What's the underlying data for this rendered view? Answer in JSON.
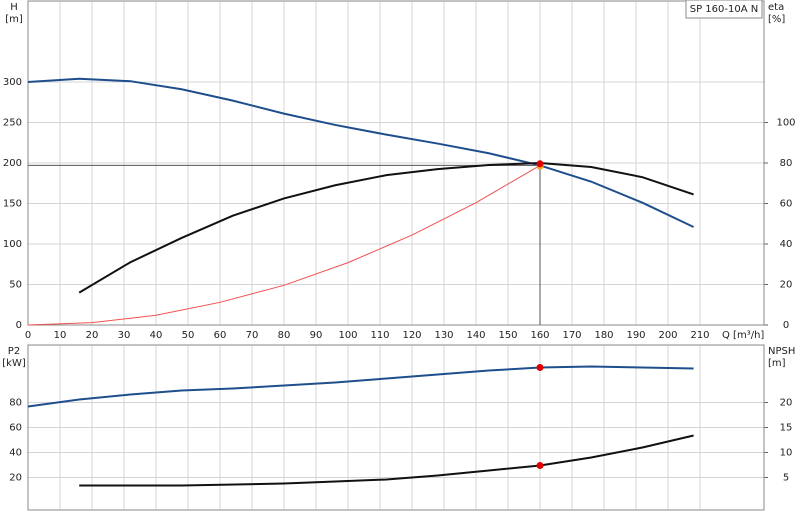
{
  "chart_data": [
    {
      "type": "line",
      "title": "SP 160-10A N",
      "x_label": "Q [m³/h]",
      "y_label": "H",
      "y_unit": "[m]",
      "y2_label": "eta",
      "y2_unit": "[%]",
      "xlim": [
        0,
        230
      ],
      "xticks": [
        0,
        10,
        20,
        30,
        40,
        50,
        60,
        70,
        80,
        90,
        100,
        110,
        120,
        130,
        140,
        150,
        160,
        170,
        180,
        190,
        200,
        210
      ],
      "ylim": [
        0,
        400
      ],
      "yticks": [
        0,
        50,
        100,
        150,
        200,
        250,
        300
      ],
      "y2lim": [
        0,
        160
      ],
      "y2ticks": [
        0,
        20,
        40,
        60,
        80,
        100
      ],
      "grid": true,
      "series": [
        {
          "color": "#1f4e8c",
          "x": [
            0,
            16,
            32,
            48,
            64,
            80,
            96,
            112,
            128,
            144,
            160,
            176,
            192,
            208
          ],
          "values": [
            300,
            304,
            301,
            291,
            277,
            261,
            247,
            235,
            224,
            212,
            197,
            177,
            151,
            121
          ]
        },
        {
          "color": "#111111",
          "axis": "y2",
          "x": [
            16,
            32,
            48,
            64,
            80,
            96,
            112,
            128,
            144,
            160,
            176,
            192,
            208
          ],
          "values": [
            16,
            31,
            43,
            54,
            62.5,
            69,
            74,
            77,
            79,
            80,
            78,
            73,
            64.5
          ]
        },
        {
          "color": "#f05050",
          "x": [
            0,
            20,
            40,
            60,
            80,
            100,
            120,
            140,
            160
          ],
          "values": [
            0,
            3,
            12,
            28,
            49,
            77,
            111,
            151,
            197
          ]
        }
      ],
      "reference": {
        "x": 160,
        "y": 197
      },
      "points": [
        {
          "x": 160,
          "y": 196,
          "color": "#f5a623"
        },
        {
          "x": 160,
          "y": 199,
          "color": "#e00000"
        }
      ]
    },
    {
      "type": "line",
      "y_label": "P2",
      "y_unit": "[kW]",
      "y2_label": "NPSH",
      "y2_unit": "[m]",
      "xlim": [
        0,
        230
      ],
      "xticks": [
        0,
        10,
        20,
        30,
        40,
        50,
        60,
        70,
        80,
        90,
        100,
        110,
        120,
        130,
        140,
        150,
        160,
        170,
        180,
        190,
        200,
        210
      ],
      "ylim": [
        -6,
        126
      ],
      "yticks": [
        20,
        40,
        60,
        80
      ],
      "y2lim": [
        -1.5,
        31.5
      ],
      "y2ticks": [
        5,
        10,
        15,
        20
      ],
      "grid": true,
      "series": [
        {
          "color": "#1f4e8c",
          "x": [
            0,
            16,
            32,
            48,
            64,
            80,
            96,
            112,
            128,
            144,
            160,
            176,
            192,
            208
          ],
          "values": [
            76.8,
            82.4,
            86.4,
            89.6,
            91.2,
            93.6,
            96,
            99.2,
            102.4,
            105.6,
            108,
            108.8,
            108,
            107.2
          ]
        },
        {
          "color": "#111111",
          "axis": "y2",
          "x": [
            16,
            48,
            80,
            96,
            112,
            128,
            144,
            160,
            176,
            192,
            208
          ],
          "values": [
            3.4,
            3.4,
            3.8,
            4.2,
            4.6,
            5.4,
            6.4,
            7.4,
            9,
            11,
            13.4
          ]
        }
      ],
      "points": [
        {
          "x": 160,
          "y": 108,
          "color": "#e00000"
        },
        {
          "x": 160,
          "y": 7.4,
          "axis": "y2",
          "color": "#e00000"
        }
      ]
    }
  ]
}
